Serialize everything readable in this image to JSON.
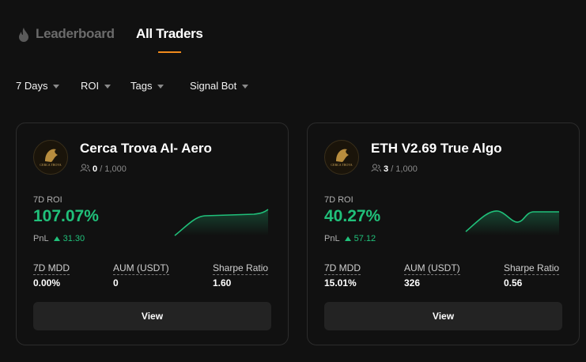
{
  "tabs": [
    "Leaderboard",
    "All Traders"
  ],
  "filters": [
    "7 Days",
    "ROI",
    "Tags",
    "Signal Bot"
  ],
  "cards": [
    {
      "avatar_text": "CERCA TROVA",
      "name": "Cerca Trova AI- Aero",
      "followers": "0",
      "capacity": "/ 1,000",
      "roi_label": "7D ROI",
      "roi": "107.07%",
      "pnl_label": "PnL",
      "pnl": "31.30",
      "stats": [
        {
          "label": "7D MDD",
          "value": "0.00%"
        },
        {
          "label": "AUM (USDT)",
          "value": "0"
        },
        {
          "label": "Sharpe Ratio",
          "value": "1.60"
        }
      ],
      "button": "View"
    },
    {
      "avatar_text": "CERCA TROVA",
      "name": "ETH V2.69 True Algo",
      "followers": "3",
      "capacity": "/ 1,000",
      "roi_label": "7D ROI",
      "roi": "40.27%",
      "pnl_label": "PnL",
      "pnl": "57.12",
      "stats": [
        {
          "label": "7D MDD",
          "value": "15.01%"
        },
        {
          "label": "AUM (USDT)",
          "value": "326"
        },
        {
          "label": "Sharpe Ratio",
          "value": "0.56"
        }
      ],
      "button": "View"
    }
  ]
}
